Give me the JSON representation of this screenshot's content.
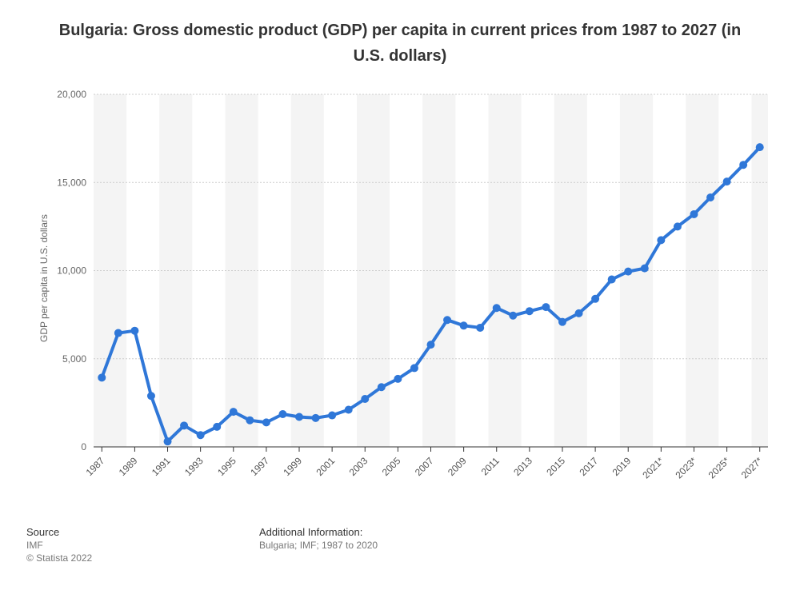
{
  "title": "Bulgaria: Gross domestic product (GDP) per capita in current prices from 1987 to 2027 (in U.S. dollars)",
  "footer": {
    "source_label": "Source",
    "source_value": "IMF",
    "copyright": "© Statista 2022",
    "info_label": "Additional Information:",
    "info_value": "Bulgaria; IMF; 1987 to 2020"
  },
  "colors": {
    "line": "#2f77d8",
    "band": "#f4f4f4",
    "axis": "#333333",
    "grid": "#cccccc"
  },
  "chart_data": {
    "type": "line",
    "title": "Bulgaria: Gross domestic product (GDP) per capita in current prices from 1987 to 2027 (in U.S. dollars)",
    "xlabel": "",
    "ylabel": "GDP per capita in U.S. dollars",
    "ylim": [
      0,
      20000
    ],
    "yticks": [
      "0",
      "5,000",
      "10,000",
      "15,000",
      "20,000"
    ],
    "grid": true,
    "x": [
      "1987",
      "1988",
      "1989",
      "1990",
      "1991",
      "1992",
      "1993",
      "1994",
      "1995",
      "1996",
      "1997",
      "1998",
      "1999",
      "2000",
      "2001",
      "2002",
      "2003",
      "2004",
      "2005",
      "2006",
      "2007",
      "2008",
      "2009",
      "2010",
      "2011",
      "2012",
      "2013",
      "2014",
      "2015",
      "2016",
      "2017",
      "2018",
      "2019",
      "2020",
      "2021*",
      "2022*",
      "2023*",
      "2024*",
      "2025*",
      "2026*",
      "2027*"
    ],
    "xtick_labels": [
      "1987",
      "1989",
      "1991",
      "1993",
      "1995",
      "1997",
      "1999",
      "2001",
      "2003",
      "2005",
      "2007",
      "2009",
      "2011",
      "2013",
      "2015",
      "2017",
      "2019",
      "2021*",
      "2023*",
      "2025*",
      "2027*"
    ],
    "series": [
      {
        "values": [
          3930,
          6460,
          6590,
          2890,
          310,
          1210,
          670,
          1140,
          1990,
          1510,
          1390,
          1860,
          1700,
          1640,
          1790,
          2110,
          2720,
          3390,
          3860,
          4470,
          5800,
          7200,
          6880,
          6760,
          7880,
          7450,
          7700,
          7930,
          7090,
          7580,
          8400,
          9500,
          9950,
          10130,
          11730,
          12500,
          13200,
          14150,
          15050,
          16000,
          17000
        ]
      }
    ]
  }
}
